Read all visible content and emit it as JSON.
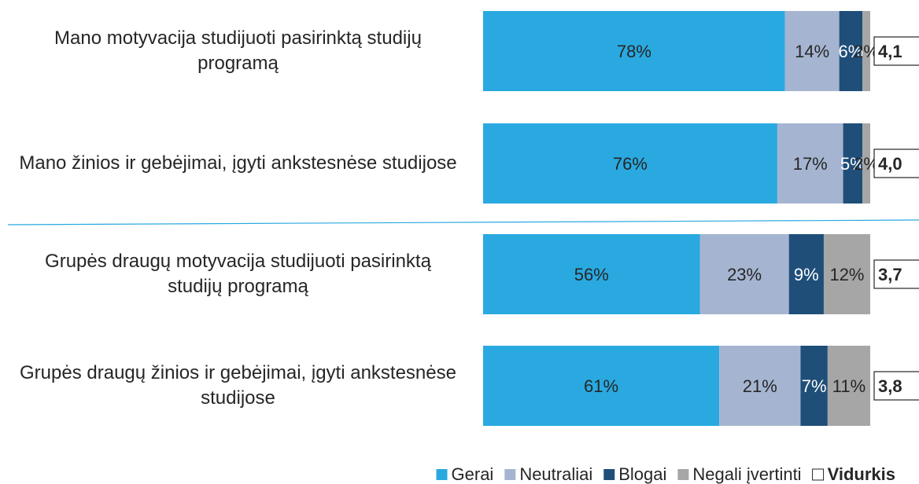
{
  "chart_data": {
    "type": "stacked-bar-horizontal",
    "categories": [
      "Mano motyvacija studijuoti pasirinktą studijų programą",
      "Mano žinios ir gebėjimai, įgyti ankstesnėse studijose",
      "Grupės draugų motyvacija studijuoti pasirinktą studijų programą",
      "Grupės draugų žinios ir gebėjimai, įgyti ankstesnėse studijose"
    ],
    "series": [
      {
        "name": "Gerai",
        "color": "#29a9e0",
        "values": [
          78,
          76,
          56,
          61
        ],
        "value_labels": [
          "78%",
          "76%",
          "56%",
          "61%"
        ]
      },
      {
        "name": "Neutraliai",
        "color": "#a5b5d1",
        "values": [
          14,
          17,
          23,
          21
        ],
        "value_labels": [
          "14%",
          "17%",
          "23%",
          "21%"
        ]
      },
      {
        "name": "Blogai",
        "color": "#1f4e79",
        "values": [
          6,
          5,
          9,
          7
        ],
        "value_labels": [
          "6%",
          "5%",
          "9%",
          "7%"
        ]
      },
      {
        "name": "Negali įvertinti",
        "color": "#a6a6a6",
        "values": [
          2,
          2,
          12,
          11
        ],
        "value_labels": [
          "2%",
          "2%",
          "12%",
          "11%"
        ]
      }
    ],
    "averages": {
      "name": "Vidurkis",
      "values": [
        4.1,
        4.0,
        3.7,
        3.8
      ],
      "value_labels": [
        "4,1",
        "4,0",
        "3,7",
        "3,8"
      ]
    },
    "xlim": [
      0,
      100
    ]
  }
}
